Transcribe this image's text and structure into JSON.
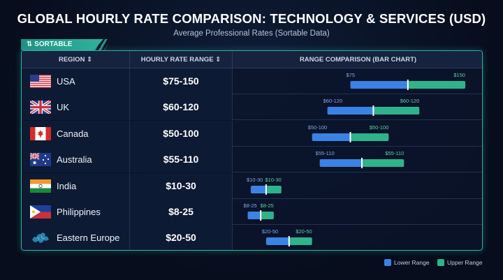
{
  "title": "GLOBAL HOURLY RATE COMPARISON: TECHNOLOGY & SERVICES (USD)",
  "subtitle": "Average Professional Rates (Sortable Data)",
  "tag_label": "⇅ SORTABLE",
  "headers": {
    "region": "REGION ⇕",
    "rate": "HOURLY RATE RANGE ⇕",
    "bar": "RANGE COMPARISON (BAR CHART)"
  },
  "legend": {
    "lower": "Lower Range",
    "upper": "Upper Range"
  },
  "colors": {
    "lower": "#3b82e6",
    "upper": "#2fb38a",
    "accent": "#2fb39e"
  },
  "chart_data": {
    "type": "bar",
    "orientation": "horizontal-range",
    "xlim": [
      0,
      160
    ],
    "rows": [
      {
        "region": "USA",
        "flag": "flag-usa-icon",
        "range": "$75-150",
        "low": 75,
        "high": 150,
        "low_label": "$75",
        "high_label": "$150"
      },
      {
        "region": "UK",
        "flag": "flag-uk-icon",
        "range": "$60-120",
        "low": 60,
        "high": 120,
        "low_label": "$60-120",
        "high_label": "$60-120"
      },
      {
        "region": "Canada",
        "flag": "flag-canada-icon",
        "range": "$50-100",
        "low": 50,
        "high": 100,
        "low_label": "$50-100",
        "high_label": "$50-100"
      },
      {
        "region": "Australia",
        "flag": "flag-australia-icon",
        "range": "$55-110",
        "low": 55,
        "high": 110,
        "low_label": "$55-110",
        "high_label": "$55-110"
      },
      {
        "region": "India",
        "flag": "flag-india-icon",
        "range": "$10-30",
        "low": 10,
        "high": 30,
        "low_label": "$10-30",
        "high_label": "$10-30"
      },
      {
        "region": "Philippines",
        "flag": "flag-philippines-icon",
        "range": "$8-25",
        "low": 8,
        "high": 25,
        "low_label": "$8-25",
        "high_label": "$8-25"
      },
      {
        "region": "Eastern Europe",
        "flag": "europe-map-icon",
        "range": "$20-50",
        "low": 20,
        "high": 50,
        "low_label": "$20-50",
        "high_label": "$20-50"
      }
    ]
  }
}
